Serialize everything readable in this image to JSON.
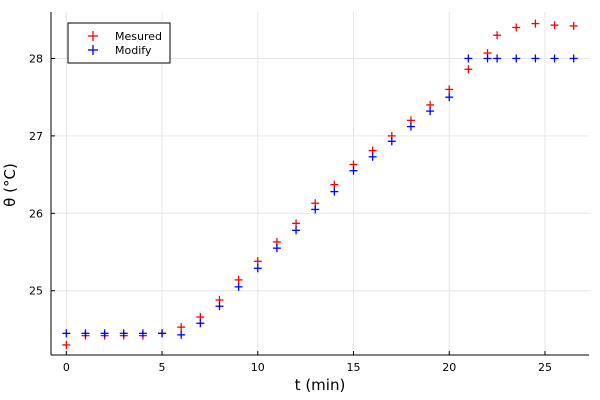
{
  "chart_data": {
    "type": "scatter",
    "xlabel": "t  (min)",
    "ylabel": "θ (°C)",
    "xlim": [
      -0.8,
      27.3
    ],
    "ylim": [
      24.17,
      28.6
    ],
    "xticks": [
      0,
      5,
      10,
      15,
      20,
      25
    ],
    "yticks": [
      25,
      26,
      27,
      28
    ],
    "grid": true,
    "legend_position": "top-left",
    "series": [
      {
        "name": "Mesured",
        "color": "#ff0000",
        "marker": "plus",
        "x": [
          0,
          1,
          2,
          3,
          4,
          5,
          6,
          7,
          8,
          9,
          10,
          11,
          12,
          13,
          14,
          15,
          16,
          17,
          18,
          19,
          20,
          21,
          22,
          22.5,
          23.5,
          24.5,
          25.5,
          26.5
        ],
        "y": [
          24.3,
          24.42,
          24.42,
          24.42,
          24.42,
          24.45,
          24.53,
          24.66,
          24.88,
          25.14,
          25.38,
          25.63,
          25.87,
          26.13,
          26.37,
          26.63,
          26.81,
          27.0,
          27.2,
          27.4,
          27.6,
          27.86,
          28.07,
          28.3,
          28.4,
          28.45,
          28.43,
          28.42
        ]
      },
      {
        "name": "Modify",
        "color": "#0000ff",
        "marker": "plus",
        "x": [
          0,
          1,
          2,
          3,
          4,
          5,
          6,
          7,
          8,
          9,
          10,
          11,
          12,
          13,
          14,
          15,
          16,
          17,
          18,
          19,
          20,
          21,
          22,
          22.5,
          23.5,
          24.5,
          25.5,
          26.5
        ],
        "y": [
          24.45,
          24.45,
          24.45,
          24.45,
          24.45,
          24.45,
          24.43,
          24.58,
          24.8,
          25.05,
          25.29,
          25.55,
          25.78,
          26.05,
          26.28,
          26.55,
          26.73,
          26.93,
          27.12,
          27.32,
          27.5,
          28.0,
          28.0,
          28.0,
          28.0,
          28.0,
          28.0,
          28.0
        ]
      }
    ]
  }
}
